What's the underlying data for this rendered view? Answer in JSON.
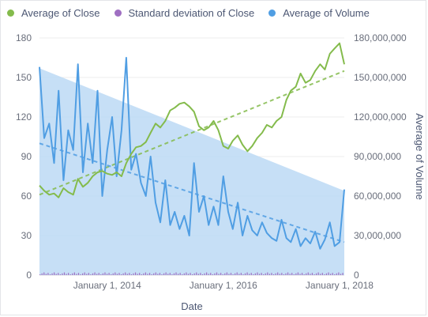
{
  "chart_data": {
    "type": "line",
    "xlabel": "Date",
    "ylabel_right": "Average of Volume",
    "x_ticks": [
      "January 1, 2014",
      "January 1, 2016",
      "January 1, 2018"
    ],
    "y_left_ticks": [
      "0",
      "30",
      "60",
      "90",
      "120",
      "150",
      "180"
    ],
    "y_right_ticks": [
      "0",
      "30,000,000",
      "60,000,000",
      "90,000,000",
      "120,000,000",
      "150,000,000",
      "180,000,000"
    ],
    "ylim_left": [
      0,
      180
    ],
    "ylim_right": [
      0,
      180000000
    ],
    "xlim": [
      "2012-11-01",
      "2018-01-31"
    ],
    "grid": true,
    "legend_position": "top-left",
    "colors": {
      "close": "#84bb4c",
      "stdev": "#9f6fc2",
      "volume": "#509ee3",
      "volume_fill": "#bcd9f4"
    },
    "series": [
      {
        "name": "Average of Close",
        "key": "close",
        "x": [
          "2012-11-01",
          "2012-12-01",
          "2013-01-01",
          "2013-02-01",
          "2013-03-01",
          "2013-04-01",
          "2013-05-01",
          "2013-06-01",
          "2013-07-01",
          "2013-08-01",
          "2013-09-01",
          "2013-10-01",
          "2013-11-01",
          "2013-12-01",
          "2014-01-01",
          "2014-02-01",
          "2014-03-01",
          "2014-04-01",
          "2014-05-01",
          "2014-06-01",
          "2014-07-01",
          "2014-08-01",
          "2014-09-01",
          "2014-10-01",
          "2014-11-01",
          "2014-12-01",
          "2015-01-01",
          "2015-02-01",
          "2015-03-01",
          "2015-04-01",
          "2015-05-01",
          "2015-06-01",
          "2015-07-01",
          "2015-08-01",
          "2015-09-01",
          "2015-10-01",
          "2015-11-01",
          "2015-12-01",
          "2016-01-01",
          "2016-02-01",
          "2016-03-01",
          "2016-04-01",
          "2016-05-01",
          "2016-06-01",
          "2016-07-01",
          "2016-08-01",
          "2016-09-01",
          "2016-10-01",
          "2016-11-01",
          "2016-12-01",
          "2017-01-01",
          "2017-02-01",
          "2017-03-01",
          "2017-04-01",
          "2017-05-01",
          "2017-06-01",
          "2017-07-01",
          "2017-08-01",
          "2017-09-01",
          "2017-10-01",
          "2017-11-01",
          "2017-12-01",
          "2018-01-01",
          "2018-01-31"
        ],
        "values": [
          68,
          64,
          61,
          62,
          59,
          66,
          63,
          61,
          73,
          67,
          70,
          75,
          78,
          79,
          77,
          76,
          78,
          75,
          85,
          92,
          97,
          98,
          101,
          108,
          115,
          112,
          117,
          125,
          127,
          130,
          131,
          128,
          124,
          113,
          110,
          112,
          117,
          110,
          98,
          96,
          102,
          106,
          99,
          94,
          98,
          104,
          108,
          114,
          112,
          117,
          120,
          133,
          140,
          143,
          153,
          146,
          148,
          155,
          160,
          156,
          168,
          172,
          176,
          160
        ]
      },
      {
        "name": "Standard deviation of Close",
        "key": "stdev",
        "x": [],
        "values": []
      },
      {
        "name": "Average of Volume",
        "key": "volume",
        "x": [
          "2012-11-01",
          "2012-12-01",
          "2013-01-01",
          "2013-02-01",
          "2013-03-01",
          "2013-04-01",
          "2013-05-01",
          "2013-06-01",
          "2013-07-01",
          "2013-08-01",
          "2013-09-01",
          "2013-10-01",
          "2013-11-01",
          "2013-12-01",
          "2014-01-01",
          "2014-02-01",
          "2014-03-01",
          "2014-04-01",
          "2014-05-01",
          "2014-06-01",
          "2014-07-01",
          "2014-08-01",
          "2014-09-01",
          "2014-10-01",
          "2014-11-01",
          "2014-12-01",
          "2015-01-01",
          "2015-02-01",
          "2015-03-01",
          "2015-04-01",
          "2015-05-01",
          "2015-06-01",
          "2015-07-01",
          "2015-08-01",
          "2015-09-01",
          "2015-10-01",
          "2015-11-01",
          "2015-12-01",
          "2016-01-01",
          "2016-02-01",
          "2016-03-01",
          "2016-04-01",
          "2016-05-01",
          "2016-06-01",
          "2016-07-01",
          "2016-08-01",
          "2016-09-01",
          "2016-10-01",
          "2016-11-01",
          "2016-12-01",
          "2017-01-01",
          "2017-02-01",
          "2017-03-01",
          "2017-04-01",
          "2017-05-01",
          "2017-06-01",
          "2017-07-01",
          "2017-08-01",
          "2017-09-01",
          "2017-10-01",
          "2017-11-01",
          "2017-12-01",
          "2018-01-01",
          "2018-01-31"
        ],
        "values": [
          158000000,
          104000000,
          115000000,
          85000000,
          140000000,
          72000000,
          110000000,
          95000000,
          160000000,
          78000000,
          115000000,
          85000000,
          140000000,
          60000000,
          95000000,
          120000000,
          75000000,
          110000000,
          165000000,
          80000000,
          92000000,
          70000000,
          60000000,
          90000000,
          55000000,
          40000000,
          72000000,
          38000000,
          48000000,
          35000000,
          45000000,
          30000000,
          85000000,
          48000000,
          60000000,
          38000000,
          52000000,
          38000000,
          75000000,
          48000000,
          35000000,
          55000000,
          30000000,
          45000000,
          34000000,
          30000000,
          40000000,
          32000000,
          28000000,
          26000000,
          42000000,
          28000000,
          25000000,
          35000000,
          22000000,
          28000000,
          24000000,
          33000000,
          20000000,
          27000000,
          40000000,
          22000000,
          25000000,
          65000000
        ]
      }
    ],
    "trendlines": [
      {
        "series": "Average of Close",
        "axis": "left",
        "values": [
          61,
          155
        ]
      },
      {
        "series": "Average of Volume",
        "axis": "right",
        "values": [
          100000000,
          25000000
        ]
      }
    ],
    "area_band": {
      "axis": "right",
      "start": 157000000,
      "end": 64000000
    }
  }
}
